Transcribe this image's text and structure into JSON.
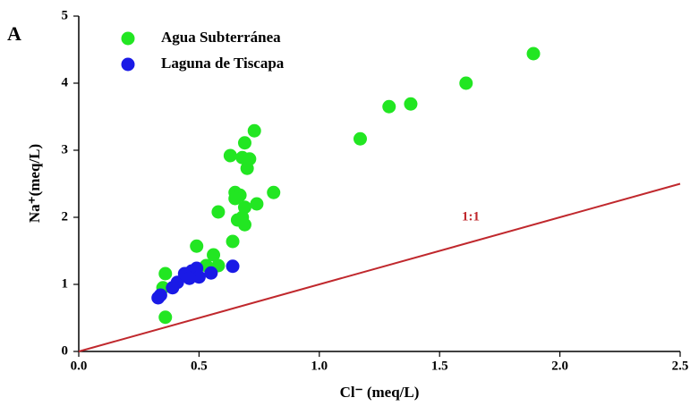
{
  "chart_data": {
    "type": "scatter",
    "panel_label": "A",
    "xlabel": "Cl⁻ (meq/L)",
    "ylabel": "Na⁺(meq/L)",
    "xlim": [
      0,
      2.5
    ],
    "ylim": [
      0,
      5
    ],
    "xticks": [
      {
        "value": 0,
        "label": "0.0"
      },
      0.5,
      {
        "value": 1,
        "label": "1.0"
      },
      1.5,
      {
        "value": 2,
        "label": "2.0"
      },
      2.5
    ],
    "yticks": [
      0,
      1,
      2,
      3,
      4,
      5
    ],
    "series": [
      {
        "name": "Agua Subterránea",
        "color": "#22e622",
        "x": [
          1.89,
          1.61,
          1.38,
          1.29,
          1.17,
          0.73,
          0.69,
          0.63,
          0.68,
          0.71,
          0.7,
          0.81,
          0.65,
          0.67,
          0.65,
          0.74,
          0.69,
          0.58,
          0.66,
          0.68,
          0.69,
          0.64,
          0.49,
          0.56,
          0.53,
          0.58,
          0.36,
          0.35,
          0.36,
          0.45
        ],
        "y": [
          4.44,
          4.0,
          3.69,
          3.65,
          3.17,
          3.29,
          3.11,
          2.92,
          2.89,
          2.87,
          2.73,
          2.37,
          2.37,
          2.33,
          2.28,
          2.2,
          2.15,
          2.08,
          1.96,
          2.0,
          1.89,
          1.64,
          1.57,
          1.44,
          1.28,
          1.28,
          1.16,
          0.95,
          0.51,
          1.16
        ]
      },
      {
        "name": "Laguna de Tiscapa",
        "color": "#1a1ae6",
        "x": [
          0.33,
          0.34,
          0.39,
          0.41,
          0.44,
          0.47,
          0.49,
          0.5,
          0.55,
          0.64,
          0.46
        ],
        "y": [
          0.8,
          0.84,
          0.95,
          1.03,
          1.16,
          1.2,
          1.24,
          1.11,
          1.17,
          1.27,
          1.09
        ]
      }
    ],
    "reference_line": {
      "label": "1:1",
      "x": [
        0,
        2.5
      ],
      "y": [
        0,
        2.5
      ],
      "color": "#c0282d"
    }
  }
}
